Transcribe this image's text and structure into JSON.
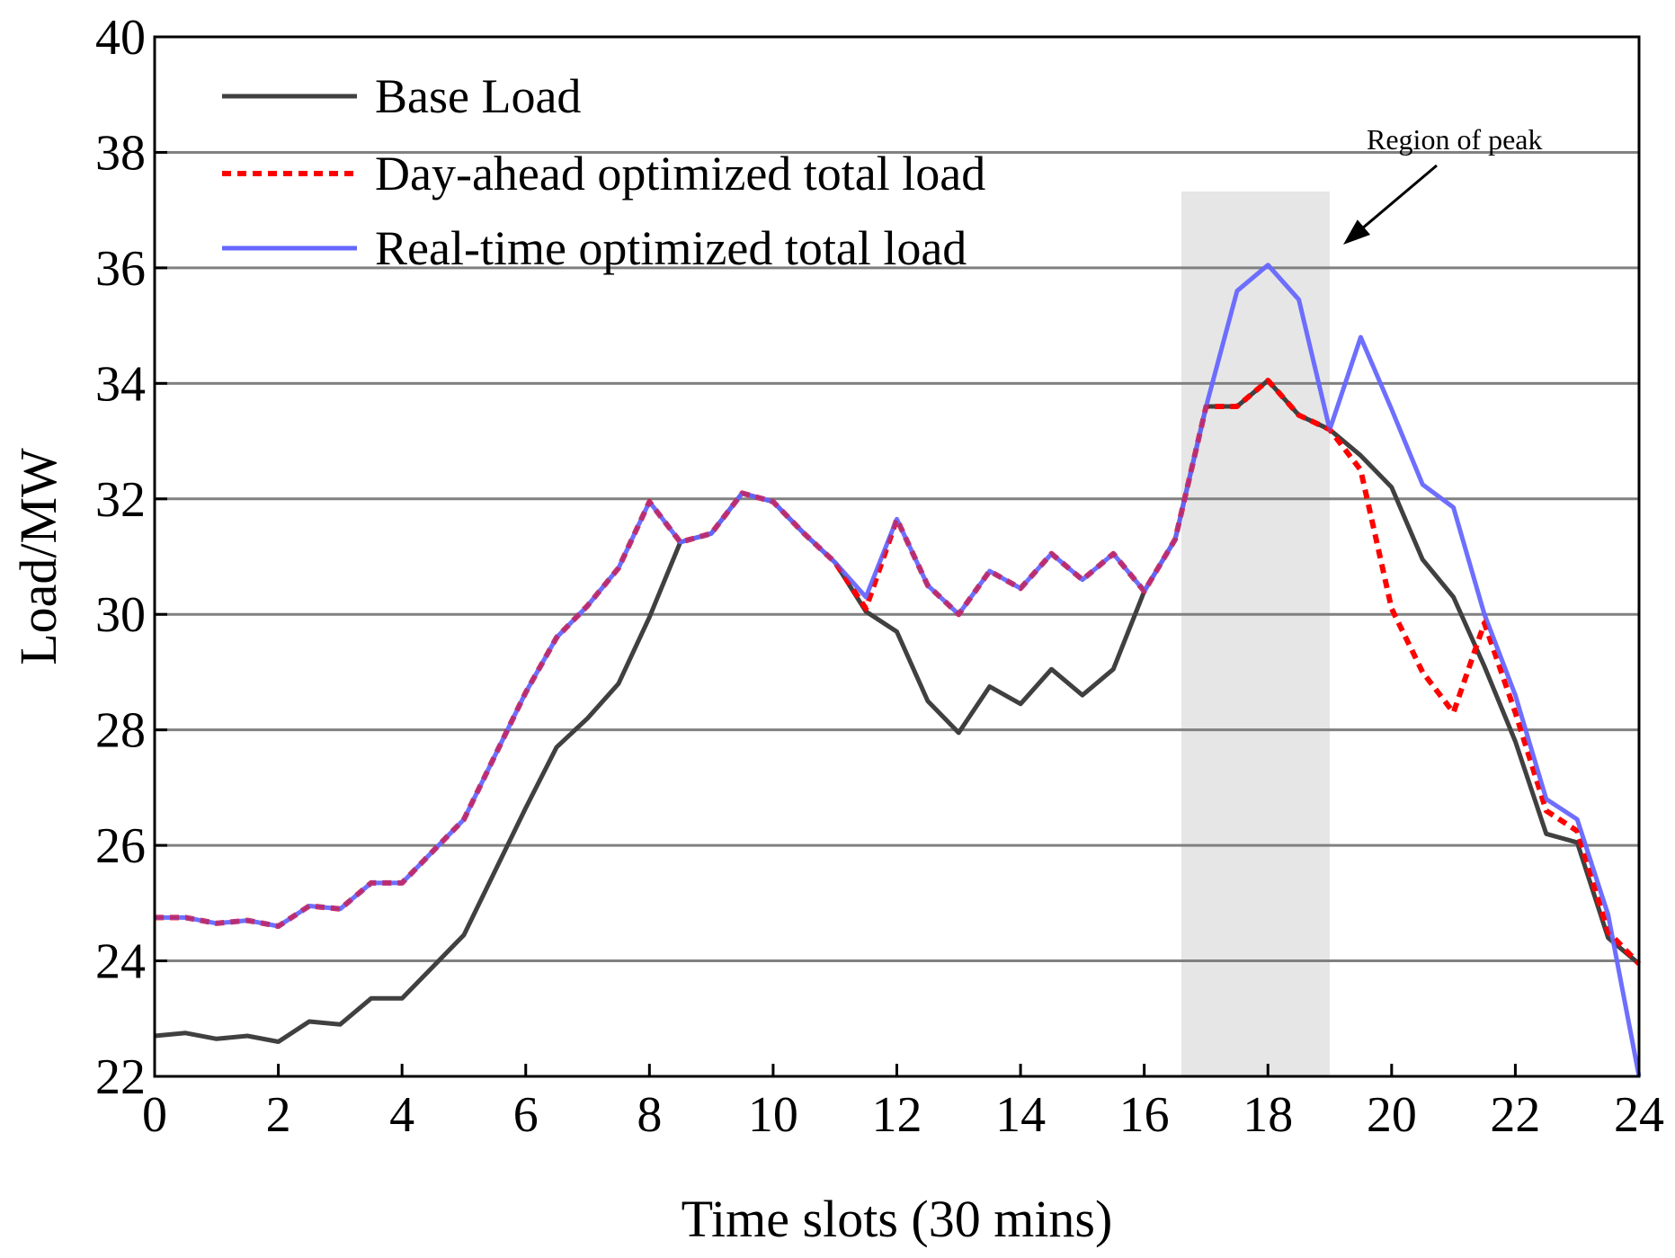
{
  "chart_data": {
    "type": "line",
    "title": "",
    "xlabel": "Time slots (30 mins)",
    "ylabel": "Load/MW",
    "xlim": [
      0,
      24
    ],
    "ylim": [
      22,
      40
    ],
    "xticks": [
      0,
      2,
      4,
      6,
      8,
      10,
      12,
      14,
      16,
      18,
      20,
      22,
      24
    ],
    "yticks": [
      22,
      24,
      26,
      28,
      30,
      32,
      34,
      36,
      38,
      40
    ],
    "grid": "horizontal",
    "legend_position": "top-left",
    "shaded_region": {
      "x": [
        16.6,
        19.0
      ],
      "color": "#e6e6e6"
    },
    "annotation": {
      "text": "Region of peak",
      "arrow_from": [
        20.4,
        37.8
      ],
      "arrow_to": [
        19.1,
        36.4
      ]
    },
    "x": [
      0,
      0.5,
      1,
      1.5,
      2,
      2.5,
      3,
      3.5,
      4,
      4.5,
      5,
      5.5,
      6,
      6.5,
      7,
      7.5,
      8,
      8.5,
      9,
      9.5,
      10,
      10.5,
      11,
      11.5,
      12,
      12.5,
      13,
      13.5,
      14,
      14.5,
      15,
      15.5,
      16,
      16.5,
      17,
      17.5,
      18,
      18.5,
      19,
      19.5,
      20,
      20.5,
      21,
      21.5,
      22,
      22.5,
      23,
      23.5,
      24
    ],
    "series": [
      {
        "name": "Base Load",
        "color": "#404040",
        "style": "solid",
        "values": [
          22.7,
          22.75,
          22.65,
          22.7,
          22.6,
          22.95,
          22.9,
          23.35,
          23.35,
          23.9,
          24.45,
          25.55,
          26.65,
          27.7,
          28.2,
          28.8,
          29.95,
          31.25,
          31.4,
          32.1,
          31.95,
          31.4,
          30.9,
          30.05,
          29.7,
          28.5,
          27.95,
          28.75,
          28.45,
          29.05,
          28.6,
          29.05,
          30.4,
          31.3,
          33.6,
          33.6,
          34.05,
          33.45,
          33.2,
          32.75,
          32.2,
          30.95,
          30.3,
          29.1,
          27.8,
          26.2,
          26.05,
          24.4,
          23.95
        ]
      },
      {
        "name": "Day-ahead optimized total load",
        "color": "#ff0000",
        "style": "dotted",
        "values": [
          24.75,
          24.75,
          24.65,
          24.7,
          24.6,
          24.95,
          24.9,
          25.35,
          25.35,
          25.9,
          26.45,
          27.55,
          28.65,
          29.6,
          30.15,
          30.8,
          31.95,
          31.25,
          31.4,
          32.1,
          31.95,
          31.4,
          30.9,
          30.1,
          31.65,
          30.5,
          30.0,
          30.75,
          30.45,
          31.05,
          30.6,
          31.05,
          30.4,
          31.3,
          33.6,
          33.6,
          34.05,
          33.45,
          33.2,
          32.5,
          30.1,
          29.0,
          28.3,
          29.85,
          28.3,
          26.6,
          26.25,
          24.5,
          23.95
        ]
      },
      {
        "name": "Real-time optimized total load",
        "color": "#6666ff",
        "style": "solid",
        "values": [
          24.75,
          24.75,
          24.65,
          24.7,
          24.6,
          24.95,
          24.9,
          25.35,
          25.35,
          25.9,
          26.45,
          27.55,
          28.65,
          29.6,
          30.15,
          30.8,
          31.95,
          31.25,
          31.4,
          32.1,
          31.95,
          31.4,
          30.9,
          30.3,
          31.65,
          30.5,
          30.0,
          30.75,
          30.45,
          31.05,
          30.6,
          31.05,
          30.4,
          31.3,
          33.6,
          35.6,
          36.05,
          35.45,
          33.2,
          34.8,
          33.55,
          32.25,
          31.85,
          30.0,
          28.6,
          26.8,
          26.45,
          24.8,
          22.0
        ]
      }
    ]
  }
}
